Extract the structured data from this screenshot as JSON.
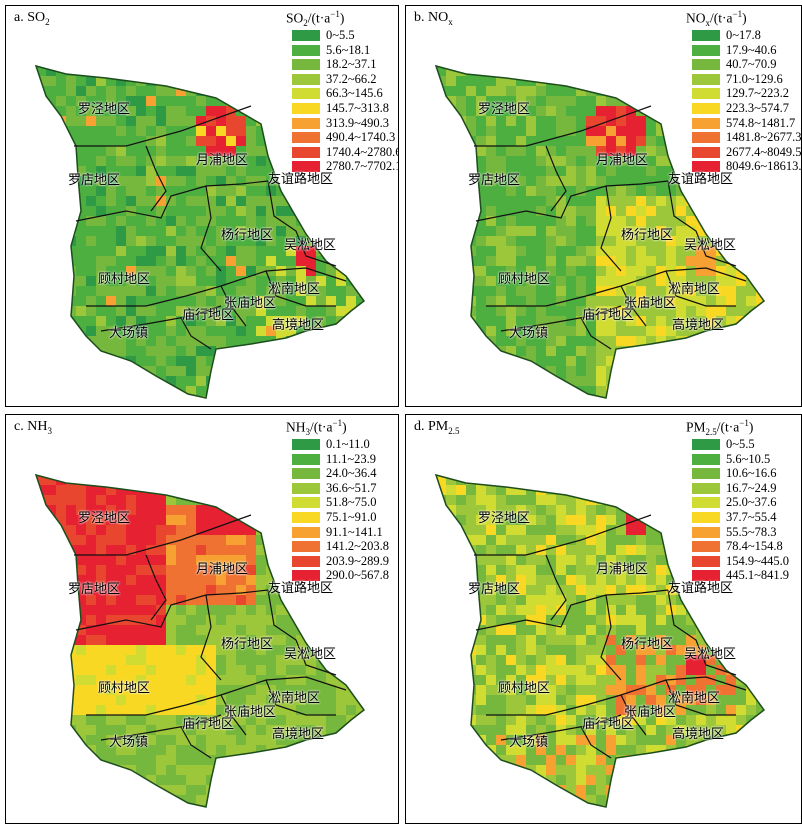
{
  "colors": [
    "#2f9a45",
    "#4daf40",
    "#76b83d",
    "#9dc73a",
    "#d1dc32",
    "#f8d823",
    "#f6a132",
    "#f07232",
    "#e8462f",
    "#e62131"
  ],
  "districts": [
    "罗泾地区",
    "月浦地区",
    "罗店地区",
    "友谊路地区",
    "杨行地区",
    "吴淞地区",
    "顾村地区",
    "淞南地区",
    "张庙地区",
    "庙行地区",
    "高境地区",
    "大场镇"
  ],
  "panels": [
    {
      "id": "a",
      "label": "a. SO",
      "label_sub": "2",
      "legend": {
        "base": "SO",
        "sub": "2",
        "unit": "/(t·a",
        "sup": "−1",
        "close": ")"
      },
      "ranges": [
        "0~5.5",
        "5.6~18.1",
        "18.2~37.1",
        "37.2~66.2",
        "66.3~145.6",
        "145.7~313.8",
        "313.9~490.3",
        "490.4~1740.3",
        "1740.4~2780.6",
        "2780.7~7702.1"
      ]
    },
    {
      "id": "b",
      "label": "b. NO",
      "label_sub": "x",
      "legend": {
        "base": "NO",
        "sub": "x",
        "unit": "/(t·a",
        "sup": "−1",
        "close": ")"
      },
      "ranges": [
        "0~17.8",
        "17.9~40.6",
        "40.7~70.9",
        "71.0~129.6",
        "129.7~223.2",
        "223.3~574.7",
        "574.8~1481.7",
        "1481.8~2677.3",
        "2677.4~8049.5",
        "8049.6~18613.2"
      ]
    },
    {
      "id": "c",
      "label": "c. NH",
      "label_sub": "3",
      "legend": {
        "base": "NH",
        "sub": "3",
        "unit": "/(t·a",
        "sup": "−1",
        "close": ")"
      },
      "ranges": [
        "0.1~11.0",
        "11.1~23.9",
        "24.0~36.4",
        "36.6~51.7",
        "51.8~75.0",
        "75.1~91.0",
        "91.1~141.1",
        "141.2~203.8",
        "203.9~289.9",
        "290.0~567.8"
      ]
    },
    {
      "id": "d",
      "label": "d. PM",
      "label_sub": "2.5",
      "legend": {
        "base": "PM",
        "sub": "2.5",
        "unit": "/(t·a",
        "sup": "−1",
        "close": ")"
      },
      "ranges": [
        "0~5.5",
        "5.6~10.5",
        "10.6~16.6",
        "16.7~24.9",
        "25.0~37.6",
        "37.7~55.4",
        "55.5~78.3",
        "78.4~154.8",
        "154.9~445.0",
        "445.1~841.9"
      ]
    }
  ]
}
